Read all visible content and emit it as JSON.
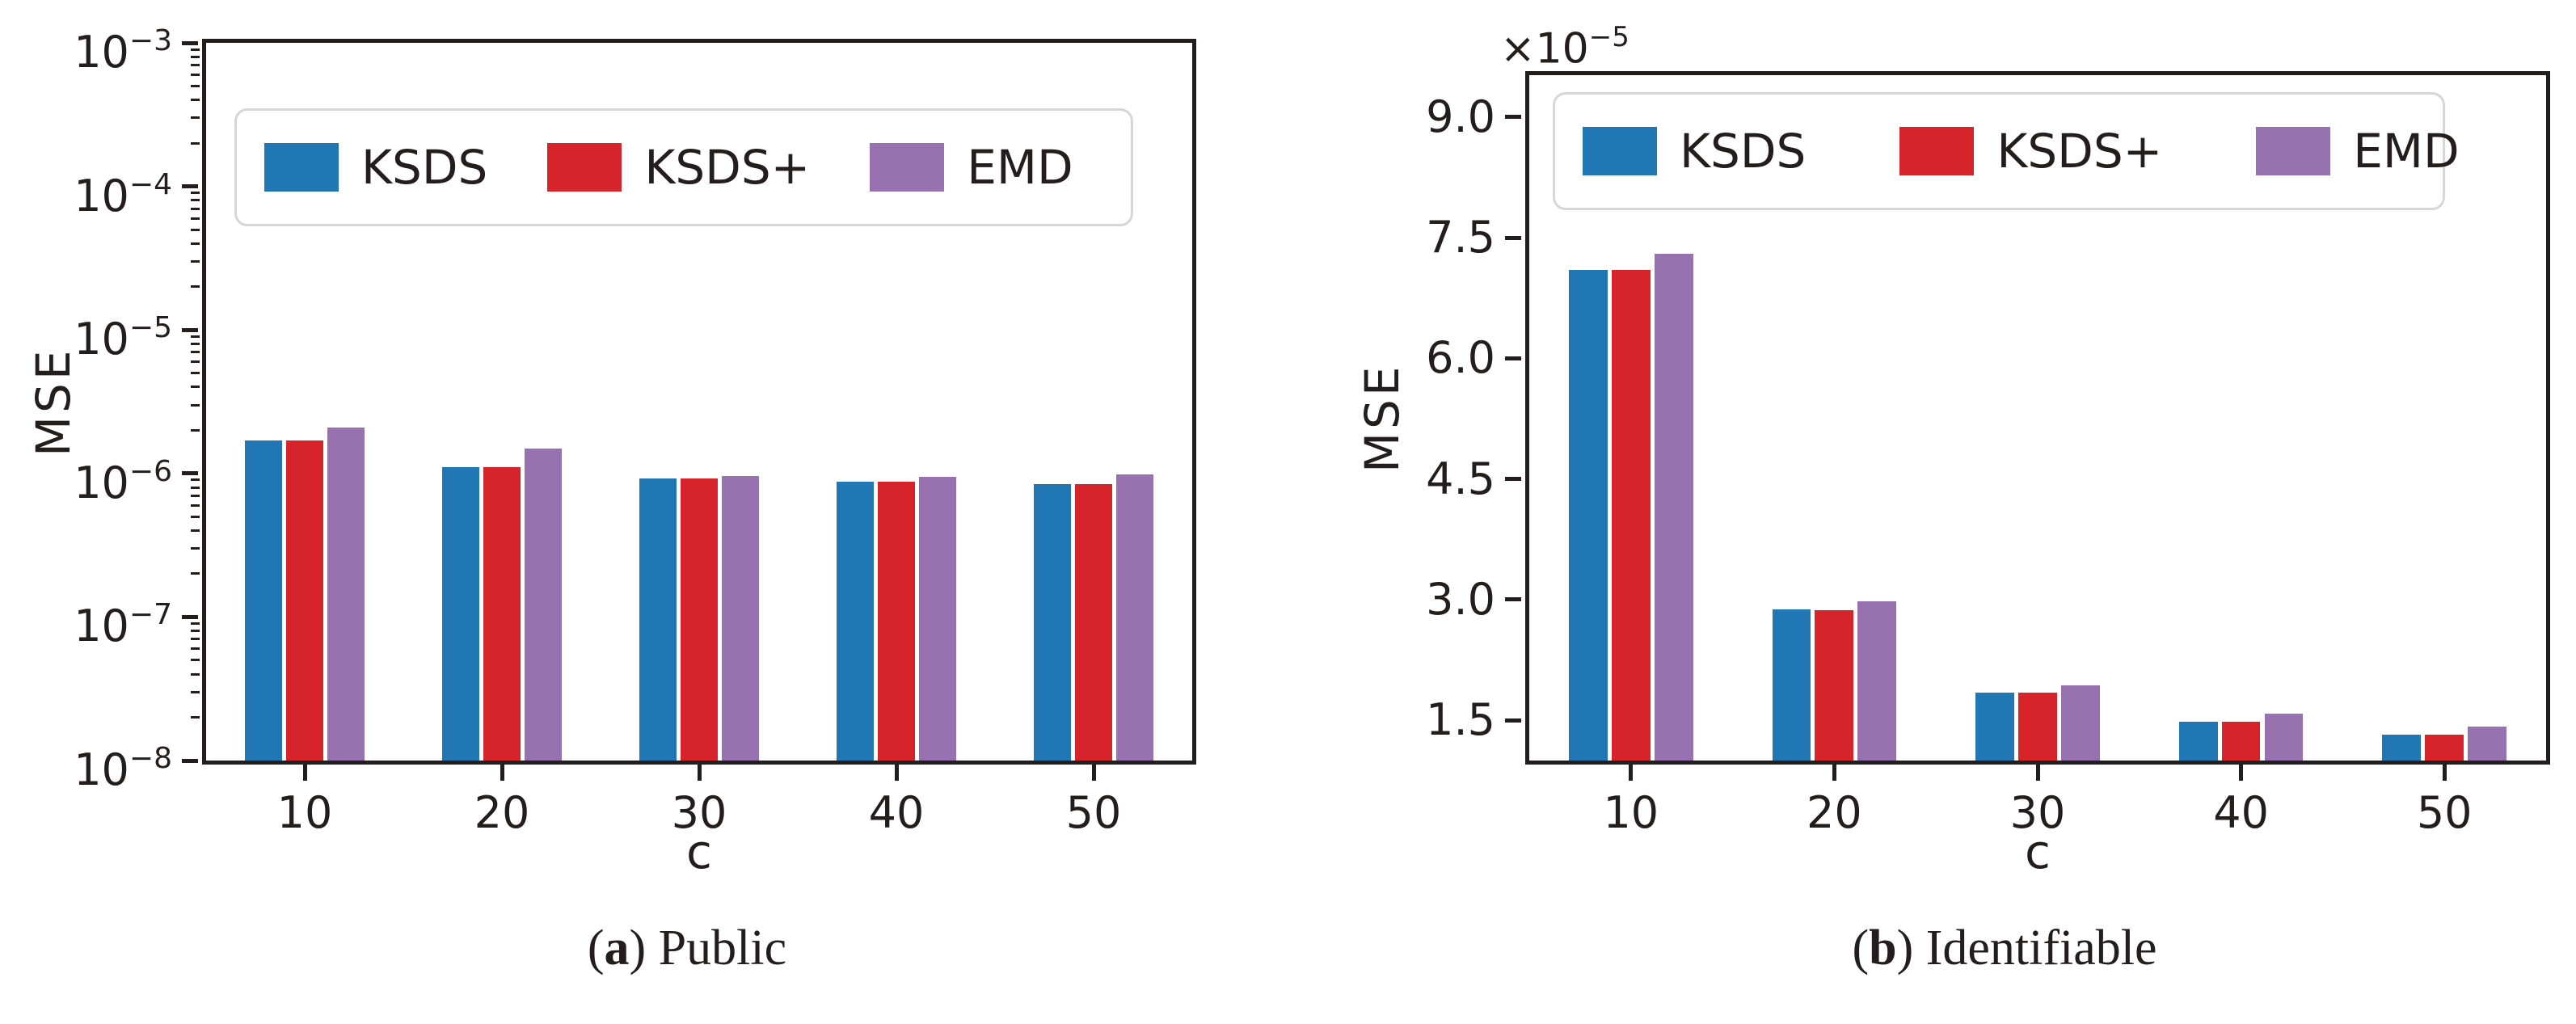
{
  "figure": {
    "captions": [
      {
        "prefix": "(",
        "letter": "a",
        "suffix": ") ",
        "text": "Public"
      },
      {
        "prefix": "(",
        "letter": "b",
        "suffix": ") ",
        "text": "Identifiable"
      }
    ]
  },
  "colors": {
    "ksds": "#2176b4",
    "ksds_plus": "#d7242b",
    "emd": "#9872b0",
    "axis": "#241d1d",
    "legend_border": "#d6d6d6"
  },
  "chart_data": [
    {
      "id": "public",
      "type": "bar",
      "subcaption": "(a) Public",
      "xlabel": "c",
      "ylabel": "MSE",
      "yscale": "log",
      "ylim": [
        1e-08,
        0.001
      ],
      "ytick_exponents": [
        -3,
        -4,
        -5,
        -6,
        -7,
        -8
      ],
      "grid": false,
      "legend_position": "upper left inside",
      "categories": [
        "10",
        "20",
        "30",
        "40",
        "50"
      ],
      "series": [
        {
          "name": "KSDS",
          "color": "#2176b4",
          "values": [
            1.7e-06,
            1.1e-06,
            9.2e-07,
            8.8e-07,
            8.4e-07
          ]
        },
        {
          "name": "KSDS+",
          "color": "#d7242b",
          "values": [
            1.7e-06,
            1.1e-06,
            9.2e-07,
            8.8e-07,
            8.4e-07
          ]
        },
        {
          "name": "EMD",
          "color": "#9872b0",
          "values": [
            2.1e-06,
            1.5e-06,
            9.6e-07,
            9.5e-07,
            9.8e-07
          ]
        }
      ]
    },
    {
      "id": "identifiable",
      "type": "bar",
      "subcaption": "(b) Identifiable",
      "xlabel": "c",
      "ylabel": "MSE",
      "yscale": "linear",
      "ylim": [
        1e-05,
        9.52e-05
      ],
      "yticks": [
        9e-05,
        7.5e-05,
        6e-05,
        4.5e-05,
        3e-05,
        1.5e-05
      ],
      "offset_text": {
        "base": "×10",
        "exponent": "−5"
      },
      "grid": false,
      "legend_position": "upper inside",
      "categories": [
        "10",
        "20",
        "30",
        "40",
        "50"
      ],
      "series": [
        {
          "name": "KSDS",
          "color": "#2176b4",
          "values": [
            7.1e-05,
            2.88e-05,
            1.84e-05,
            1.48e-05,
            1.32e-05
          ]
        },
        {
          "name": "KSDS+",
          "color": "#d7242b",
          "values": [
            7.1e-05,
            2.87e-05,
            1.84e-05,
            1.48e-05,
            1.32e-05
          ]
        },
        {
          "name": "EMD",
          "color": "#9872b0",
          "values": [
            7.3e-05,
            2.98e-05,
            1.93e-05,
            1.58e-05,
            1.42e-05
          ]
        }
      ]
    }
  ]
}
